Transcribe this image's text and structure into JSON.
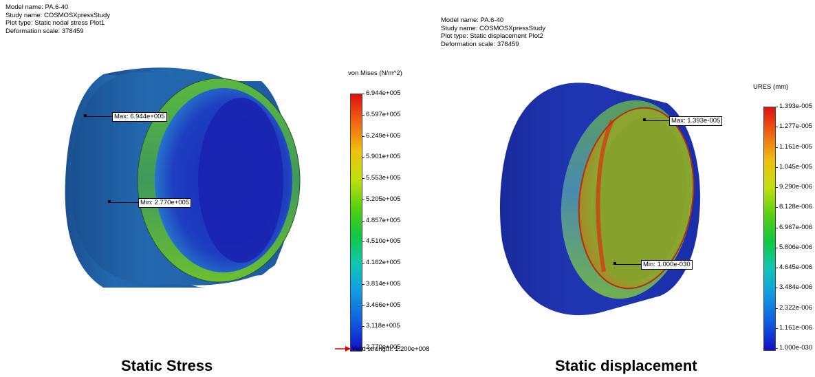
{
  "left": {
    "meta": {
      "model_name": "Model name: PA.6-40",
      "study_name": "Study name: COSMOSXpressStudy",
      "plot_type": "Plot type: Static nodal stress Plot1",
      "deformation_scale": "Deformation scale: 378459"
    },
    "legend_title": "von Mises (N/m^2)",
    "ticks": [
      "6.944e+005",
      "6.597e+005",
      "6.249e+005",
      "5.901e+005",
      "5.553e+005",
      "5.205e+005",
      "4.857e+005",
      "4.510e+005",
      "4.162e+005",
      "3.814e+005",
      "3.466e+005",
      "3.118e+005",
      "2.770e+005"
    ],
    "max_label": "Max: 6.944e+005",
    "min_label": "Min: 2.770e+005",
    "yield_label": "Yield strength: 1.200e+008",
    "caption": "Static Stress"
  },
  "right": {
    "meta": {
      "model_name": "Model name: PA.6-40",
      "study_name": "Study name: COSMOSXpressStudy",
      "plot_type": "Plot type: Static displacement Plot2",
      "deformation_scale": "Deformation scale: 378459"
    },
    "legend_title": "URES (mm)",
    "ticks": [
      "1.393e-005",
      "1.277e-005",
      "1.161e-005",
      "1.045e-005",
      "9.290e-006",
      "8.128e-006",
      "6.967e-006",
      "5.806e-006",
      "4.645e-006",
      "3.484e-006",
      "2.322e-006",
      "1.161e-006",
      "1.000e-030"
    ],
    "max_label": "Max: 1.393e-005",
    "min_label": "Min: 1.000e-030",
    "caption": "Static displacement"
  },
  "colors": {
    "stress_outer": "#1f5fa0",
    "stress_inner": "#1a30c0",
    "displacement_outer": "#1b2fa8",
    "displacement_inner": "#7ea52a",
    "high": "#e02010",
    "low": "#1010c8"
  }
}
